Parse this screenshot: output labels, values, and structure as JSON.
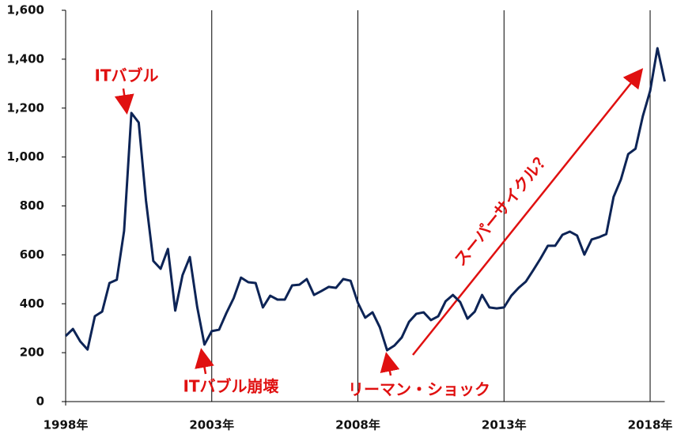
{
  "chart_data": {
    "type": "line",
    "x": [
      1998,
      1998.25,
      1998.5,
      1998.75,
      1999,
      1999.25,
      1999.5,
      1999.75,
      2000,
      2000.25,
      2000.5,
      2000.75,
      2001,
      2001.25,
      2001.5,
      2001.75,
      2002,
      2002.25,
      2002.5,
      2002.75,
      2003,
      2003.25,
      2003.5,
      2003.75,
      2004,
      2004.25,
      2004.5,
      2004.75,
      2005,
      2005.25,
      2005.5,
      2005.75,
      2006,
      2006.25,
      2006.5,
      2006.75,
      2007,
      2007.25,
      2007.5,
      2007.75,
      2008,
      2008.25,
      2008.5,
      2008.75,
      2009,
      2009.25,
      2009.5,
      2009.75,
      2010,
      2010.25,
      2010.5,
      2010.75,
      2011,
      2011.25,
      2011.5,
      2011.75,
      2012,
      2012.25,
      2012.5,
      2012.75,
      2013,
      2013.25,
      2013.5,
      2013.75,
      2014,
      2014.25,
      2014.5,
      2014.75,
      2015,
      2015.25,
      2015.5,
      2015.75,
      2016,
      2016.25,
      2016.5,
      2016.75,
      2017,
      2017.25,
      2017.5,
      2017.75,
      2018,
      2018.25,
      2018.5
    ],
    "series": [
      {
        "color": "#0d2456",
        "values": [
          268,
          297,
          246,
          213,
          349,
          368,
          485,
          498,
          698,
          1180,
          1141,
          821,
          575,
          543,
          624,
          372,
          517,
          591,
          388,
          233,
          288,
          294,
          362,
          423,
          507,
          488,
          485,
          385,
          433,
          417,
          417,
          475,
          478,
          501,
          436,
          452,
          469,
          465,
          501,
          494,
          404,
          343,
          365,
          304,
          210,
          229,
          262,
          326,
          359,
          365,
          333,
          349,
          410,
          436,
          407,
          339,
          368,
          436,
          385,
          381,
          385,
          433,
          465,
          491,
          537,
          585,
          637,
          637,
          682,
          695,
          679,
          601,
          663,
          672,
          685,
          837,
          908,
          1012,
          1034,
          1167,
          1270,
          1445,
          1309
        ]
      }
    ],
    "xlim": [
      1998,
      2018.5
    ],
    "xticks": [
      {
        "value": 1998,
        "label": "1998年"
      },
      {
        "value": 2003,
        "label": "2003年"
      },
      {
        "value": 2008,
        "label": "2008年"
      },
      {
        "value": 2013,
        "label": "2013年"
      },
      {
        "value": 2018,
        "label": "2018年"
      }
    ],
    "ylim": [
      0,
      1600
    ],
    "yticks": [
      0,
      200,
      400,
      600,
      800,
      {
        "value": 1000,
        "label": "1,000"
      },
      {
        "value": 1200,
        "label": "1,200"
      },
      {
        "value": 1400,
        "label": "1,400"
      },
      {
        "value": 1600,
        "label": "1,600"
      }
    ],
    "grid": "x",
    "annotations": [
      "ITバブル",
      "ITバブル崩壊",
      "リーマン・ショック",
      "スーパーサイクル？"
    ]
  }
}
